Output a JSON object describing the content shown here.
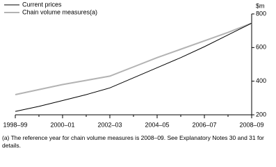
{
  "chart_data": {
    "type": "line",
    "y_label": "$m",
    "categories": [
      "1998–99",
      null,
      "2000–01",
      null,
      "2002–03",
      null,
      "2004–05",
      null,
      "2006–07",
      null,
      "2008–09"
    ],
    "series": [
      {
        "name": "Current prices",
        "color": "#000000",
        "values": [
          220,
          250,
          285,
          320,
          360,
          420,
          480,
          540,
          605,
          675,
          745
        ]
      },
      {
        "name": "Chain volume measures(a)",
        "color": "#b3b3b3",
        "values": [
          320,
          350,
          380,
          405,
          430,
          485,
          540,
          590,
          640,
          690,
          745
        ]
      }
    ],
    "ylim": [
      200,
      800
    ],
    "yticks": [
      200,
      400,
      600,
      800
    ],
    "legend": "top-left",
    "footnote": "(a) The reference year for chain volume measures is 2008–09. See Explanatory Notes 30 and 31 for details."
  }
}
